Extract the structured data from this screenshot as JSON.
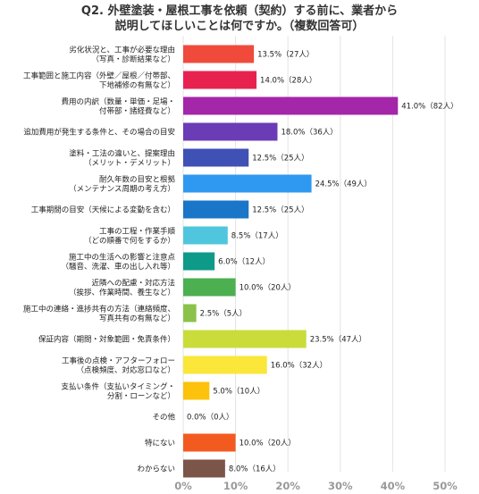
{
  "title_lines": [
    "Q2. 外壁塗装・屋根工事を依頼（契約）する前に、業者から",
    "説明してほしいことは何ですか。（複数回答可）"
  ],
  "chart_data": {
    "type": "bar",
    "orientation": "horizontal",
    "title": "Q2. 外壁塗装・屋根工事を依頼（契約）する前に、業者から説明してほしいことは何ですか。（複数回答可）",
    "xlim": [
      0,
      50
    ],
    "x_ticks": [
      "0%",
      "10%",
      "20%",
      "30%",
      "40%",
      "50%"
    ],
    "grid": true,
    "legend": "none",
    "categories": [
      [
        "劣化状況と、工事が必要な理由",
        "（写真・診断結果など）"
      ],
      [
        "工事範囲と施工内容（外壁／屋根／付帯部、",
        "下地補修の有無など）"
      ],
      [
        "費用の内訳（数量・単価・足場・",
        "付帯部・諸経費など）"
      ],
      [
        "追加費用が発生する条件と、その場合の目安"
      ],
      [
        "塗料・工法の違いと、提案理由",
        "（メリット・デメリット）"
      ],
      [
        "耐久年数の目安と根拠",
        "（メンテナンス周期の考え方）"
      ],
      [
        "工事期間の目安（天候による変動を含む）"
      ],
      [
        "工事の工程・作業手順",
        "（どの順番で何をするか）"
      ],
      [
        "施工中の生活への影響と注意点",
        "（騒音、洗濯、車の出し入れ等）"
      ],
      [
        "近隣への配慮・対応方法",
        "（挨拶、作業時間、養生など）"
      ],
      [
        "施工中の連絡・進捗共有の方法（連絡頻度、",
        "写真共有の有無など）"
      ],
      [
        "保証内容（期間・対象範囲・免責条件）"
      ],
      [
        "工事後の点検・アフターフォロー",
        "（点検頻度、対応窓口など）"
      ],
      [
        "支払い条件（支払いタイミング・",
        "分割・ローンなど）"
      ],
      [
        "その他"
      ],
      [
        "特にない"
      ],
      [
        "わからない"
      ]
    ],
    "values": [
      13.5,
      14.0,
      41.0,
      18.0,
      12.5,
      24.5,
      12.5,
      8.5,
      6.0,
      10.0,
      2.5,
      23.5,
      16.0,
      5.0,
      0.0,
      10.0,
      8.0
    ],
    "data_labels": [
      "13.5%（27人）",
      "14.0%（28人）",
      "41.0%（82人）",
      "18.0%（36人）",
      "12.5%（25人）",
      "24.5%（49人）",
      "12.5%（25人）",
      "8.5%（17人）",
      "6.0%（12人）",
      "10.0%（20人）",
      "2.5%（5人）",
      "23.5%（47人）",
      "16.0%（32人）",
      "5.0%（10人）",
      "0.0%（0人）",
      "10.0%（20人）",
      "8.0%（16人）"
    ],
    "colors": [
      "#f04a3c",
      "#e8224f",
      "#a426a9",
      "#6a3cb5",
      "#3f51b5",
      "#2f98f0",
      "#1976c8",
      "#4fc6dd",
      "#0e9a88",
      "#4caf50",
      "#8bc34a",
      "#c9dc3a",
      "#fbe63a",
      "#fcc20c",
      "#fb9a10",
      "#f35a1f",
      "#7b5548"
    ]
  }
}
